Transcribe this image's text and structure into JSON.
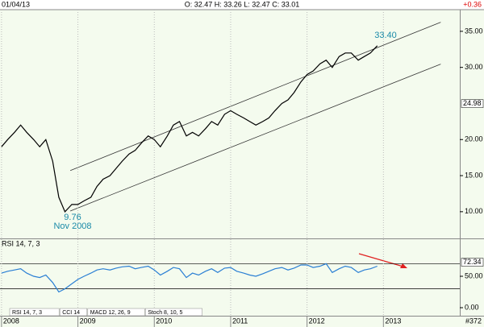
{
  "header": {
    "date": "01/04/13",
    "ohlc": "O: 32.47  H: 33.26  L: 32.47  C: 33.01",
    "change": "+0.36"
  },
  "chart_data": [
    {
      "type": "line",
      "title": "",
      "annotations": [
        "33.40",
        "9.76",
        "Nov 2008"
      ],
      "x": [
        2008.0,
        2008.08,
        2008.17,
        2008.25,
        2008.33,
        2008.42,
        2008.5,
        2008.58,
        2008.67,
        2008.75,
        2008.83,
        2008.92,
        2009.0,
        2009.08,
        2009.17,
        2009.25,
        2009.33,
        2009.42,
        2009.5,
        2009.58,
        2009.67,
        2009.75,
        2009.83,
        2009.92,
        2010.0,
        2010.08,
        2010.17,
        2010.25,
        2010.33,
        2010.42,
        2010.5,
        2010.58,
        2010.67,
        2010.75,
        2010.83,
        2010.92,
        2011.0,
        2011.08,
        2011.17,
        2011.25,
        2011.33,
        2011.42,
        2011.5,
        2011.58,
        2011.67,
        2011.75,
        2011.83,
        2011.92,
        2012.0,
        2012.08,
        2012.17,
        2012.25,
        2012.33,
        2012.42,
        2012.5,
        2012.58,
        2012.67,
        2012.75,
        2012.83,
        2012.92
      ],
      "series": [
        {
          "name": "Price",
          "color": "#000000",
          "values": [
            19,
            20,
            21,
            22,
            21,
            20,
            19,
            20,
            17,
            12,
            10,
            11,
            11,
            11.5,
            12,
            13.5,
            14.5,
            15,
            16,
            17,
            18,
            18.5,
            19.5,
            20.5,
            20,
            19,
            20.5,
            22,
            22.5,
            20.5,
            21,
            20.5,
            21.5,
            22.5,
            22,
            23.5,
            24,
            23.5,
            23,
            22.5,
            22,
            22.5,
            23,
            24,
            25,
            25.5,
            26.5,
            28,
            29,
            29.5,
            30.5,
            31,
            30,
            31.5,
            32,
            32,
            31,
            31.5,
            32,
            33
          ]
        }
      ],
      "channel_upper": [
        [
          2008.9,
          15.7
        ],
        [
          2013.75,
          36.26
        ]
      ],
      "channel_lower": [
        [
          2008.9,
          10.1
        ],
        [
          2013.75,
          30.45
        ]
      ],
      "xlim": [
        2007.98,
        2014.0
      ],
      "ylim": [
        6.3,
        38
      ],
      "yticks": [
        {
          "value": 35,
          "label": "35.00"
        },
        {
          "value": 30,
          "label": "30.00"
        },
        {
          "value": 20,
          "label": "20.00"
        },
        {
          "value": 15,
          "label": "15.00"
        },
        {
          "value": 10,
          "label": "10.00"
        }
      ],
      "marker": 24.98
    },
    {
      "type": "line",
      "title": "RSI 14, 7, 3",
      "x": [
        2008.0,
        2008.08,
        2008.17,
        2008.25,
        2008.33,
        2008.42,
        2008.5,
        2008.58,
        2008.67,
        2008.75,
        2008.83,
        2008.92,
        2009.0,
        2009.08,
        2009.17,
        2009.25,
        2009.33,
        2009.42,
        2009.5,
        2009.58,
        2009.67,
        2009.75,
        2009.83,
        2009.92,
        2010.0,
        2010.08,
        2010.17,
        2010.25,
        2010.33,
        2010.42,
        2010.5,
        2010.58,
        2010.67,
        2010.75,
        2010.83,
        2010.92,
        2011.0,
        2011.08,
        2011.17,
        2011.25,
        2011.33,
        2011.42,
        2011.5,
        2011.58,
        2011.67,
        2011.75,
        2011.83,
        2011.92,
        2012.0,
        2012.08,
        2012.17,
        2012.25,
        2012.33,
        2012.42,
        2012.5,
        2012.58,
        2012.67,
        2012.75,
        2012.83,
        2012.92
      ],
      "series": [
        {
          "name": "RSI",
          "color": "#2a7fd4",
          "values": [
            55,
            58,
            60,
            62,
            55,
            50,
            48,
            52,
            40,
            25,
            30,
            38,
            45,
            50,
            55,
            60,
            62,
            60,
            63,
            65,
            66,
            62,
            64,
            66,
            60,
            52,
            58,
            64,
            62,
            48,
            55,
            52,
            58,
            62,
            56,
            63,
            64,
            58,
            55,
            52,
            50,
            54,
            58,
            62,
            64,
            60,
            63,
            68,
            68,
            64,
            66,
            70,
            56,
            62,
            66,
            64,
            56,
            60,
            62,
            66
          ]
        }
      ],
      "levels": [
        70,
        30
      ],
      "xlim": [
        2007.98,
        2014.0
      ],
      "ylim": [
        -12.8,
        109
      ],
      "xticks": [
        2008,
        2009,
        2010,
        2011,
        2012,
        2013
      ],
      "yticks": [
        {
          "value": 50,
          "label": "50.00"
        },
        {
          "value": 0,
          "label": "0.00"
        }
      ],
      "marker": 72.34
    }
  ],
  "tabs": [
    "RSI 14, 7, 3",
    "CCI 14",
    "MACD 12, 26, 9",
    "Stoch 8, 10, 5"
  ],
  "footer": "#372"
}
